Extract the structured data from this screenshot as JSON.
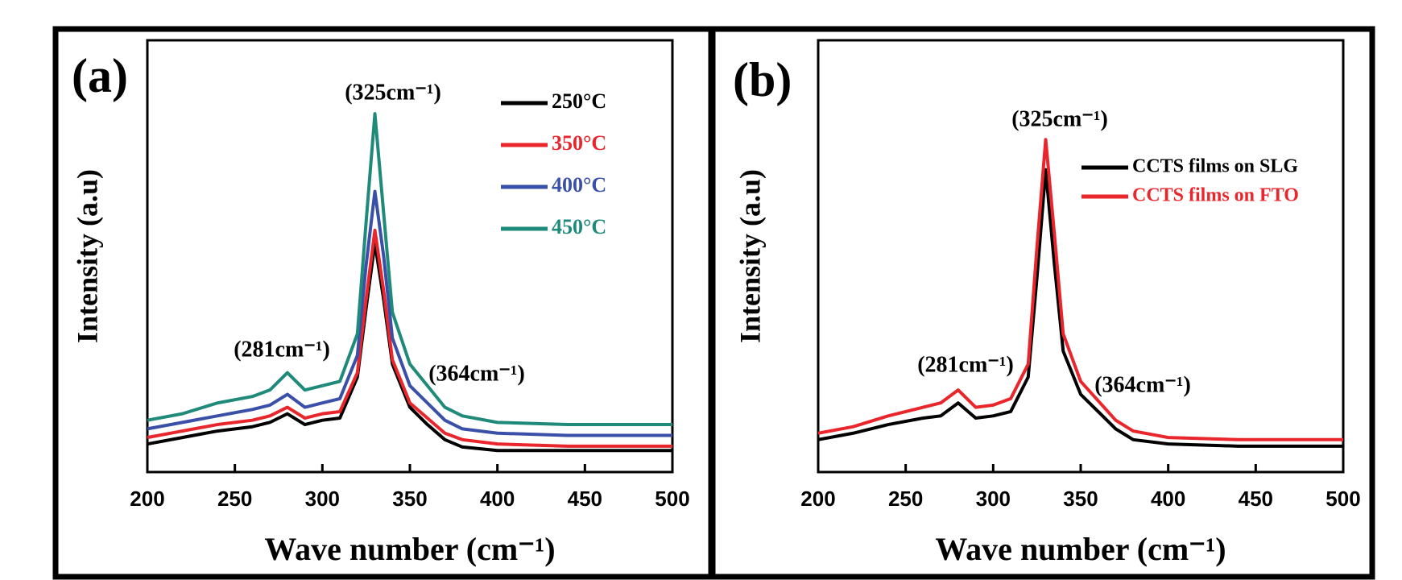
{
  "chart_data": [
    {
      "type": "line",
      "panel_label": "(a)",
      "x_label": "Wave number (cm⁻¹)",
      "y_label": "Intensity (a.u)",
      "x": [
        200,
        220,
        240,
        260,
        270,
        280,
        290,
        300,
        310,
        320,
        325,
        330,
        335,
        340,
        350,
        360,
        370,
        380,
        400,
        440,
        500
      ],
      "xlim": [
        200,
        500
      ],
      "xticks": [
        200,
        250,
        300,
        350,
        400,
        450,
        500
      ],
      "ylim": [
        0,
        100
      ],
      "legend": "upper right",
      "series": [
        {
          "name": "250°C",
          "color": "#000000",
          "values": [
            6.5,
            8,
            9.5,
            10.5,
            11.5,
            13.5,
            11,
            12,
            12.5,
            22,
            38,
            53,
            40,
            25,
            15,
            11,
            7.5,
            5.8,
            5,
            5,
            5
          ]
        },
        {
          "name": "350°C",
          "color": "#e8262c",
          "values": [
            8,
            9.5,
            11,
            12,
            13,
            15,
            12.5,
            13.5,
            14,
            23,
            40,
            56,
            42,
            26,
            16,
            12.5,
            9,
            7.5,
            6.5,
            6,
            6
          ]
        },
        {
          "name": "400°C",
          "color": "#3a4fa8",
          "values": [
            10,
            11.5,
            13,
            14.5,
            15.5,
            18,
            15,
            16,
            17,
            27,
            48,
            65,
            50,
            31,
            20,
            16,
            12,
            10,
            9,
            8.5,
            8.5
          ]
        },
        {
          "name": "450°C",
          "color": "#1f8a7a",
          "values": [
            12,
            13.5,
            16,
            17.5,
            19,
            23,
            19,
            20,
            21,
            32,
            58,
            83,
            60,
            37,
            25,
            20,
            15,
            13,
            11.5,
            11,
            11
          ]
        }
      ],
      "annotations": [
        "(325cm⁻¹)",
        "(281cm⁻¹)",
        "(364cm⁻¹)"
      ]
    },
    {
      "type": "line",
      "panel_label": "(b)",
      "x_label": "Wave number (cm⁻¹)",
      "y_label": "Intensity (a.u)",
      "x": [
        200,
        220,
        240,
        260,
        270,
        280,
        290,
        300,
        310,
        320,
        325,
        330,
        335,
        340,
        350,
        360,
        370,
        380,
        400,
        440,
        500
      ],
      "xlim": [
        200,
        500
      ],
      "xticks": [
        200,
        250,
        300,
        350,
        400,
        450,
        500
      ],
      "ylim": [
        0,
        100
      ],
      "legend": "upper right",
      "series": [
        {
          "name": "CCTS films on SLG",
          "color": "#000000",
          "values": [
            7.5,
            9,
            11,
            12.5,
            13,
            16,
            12.5,
            13,
            14,
            22,
            45,
            70,
            48,
            28,
            18,
            14,
            10,
            7.5,
            6.5,
            6,
            6
          ]
        },
        {
          "name": "CCTS films  on FTO",
          "color": "#e8262c",
          "values": [
            9,
            10.5,
            13,
            15,
            16,
            19,
            15,
            15.5,
            17,
            25,
            52,
            77,
            55,
            32,
            21,
            16.5,
            12,
            9.5,
            8,
            7.5,
            7.5
          ]
        }
      ],
      "annotations": [
        "(325cm⁻¹)",
        "(281cm⁻¹)",
        "(364cm⁻¹)"
      ]
    }
  ]
}
